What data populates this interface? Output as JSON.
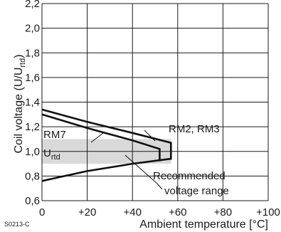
{
  "chart_data": {
    "type": "line",
    "title": "",
    "xlabel": "Ambient temperature [°C]",
    "ylabel": "Coil voltage (U/U",
    "ylabel_subscript": "rtd",
    "ylabel_close": ")",
    "xlim": [
      0,
      100
    ],
    "ylim": [
      0.6,
      2.2
    ],
    "x_ticks": [
      0,
      20,
      40,
      60,
      80,
      100
    ],
    "x_tick_labels": [
      "0",
      "+20",
      "+40",
      "+60",
      "+80",
      "+100"
    ],
    "y_ticks": [
      0.6,
      0.8,
      1.0,
      1.2,
      1.4,
      1.6,
      1.8,
      2.0,
      2.2
    ],
    "y_tick_labels": [
      "0,6",
      "0,8",
      "1,0",
      "1,2",
      "1,4",
      "1,6",
      "1,8",
      "2,0",
      "2,2"
    ],
    "grid": true,
    "series": [
      {
        "name": "RM2, RM3",
        "points": [
          [
            0,
            1.34
          ],
          [
            20,
            1.24
          ],
          [
            40,
            1.15
          ],
          [
            57,
            1.07
          ],
          [
            57,
            0.94
          ],
          [
            40,
            0.9
          ],
          [
            20,
            0.84
          ],
          [
            0,
            0.76
          ]
        ]
      },
      {
        "name": "RM7",
        "points": [
          [
            0,
            1.3
          ],
          [
            20,
            1.19
          ],
          [
            40,
            1.09
          ],
          [
            52,
            1.02
          ],
          [
            52,
            0.92
          ]
        ]
      }
    ],
    "shaded_band": {
      "x": [
        0,
        57
      ],
      "y": [
        0.9,
        1.1
      ],
      "color": "#d9d9d9"
    },
    "rated_line": {
      "y": 1.0,
      "label": "U",
      "label_subscript": "rtd"
    },
    "annotations": {
      "rm2": "RM2, RM3",
      "rm7": "RM7",
      "recommended_line1": "Recommended",
      "recommended_line2": "voltage range"
    },
    "figure_code": "S0213-C"
  }
}
